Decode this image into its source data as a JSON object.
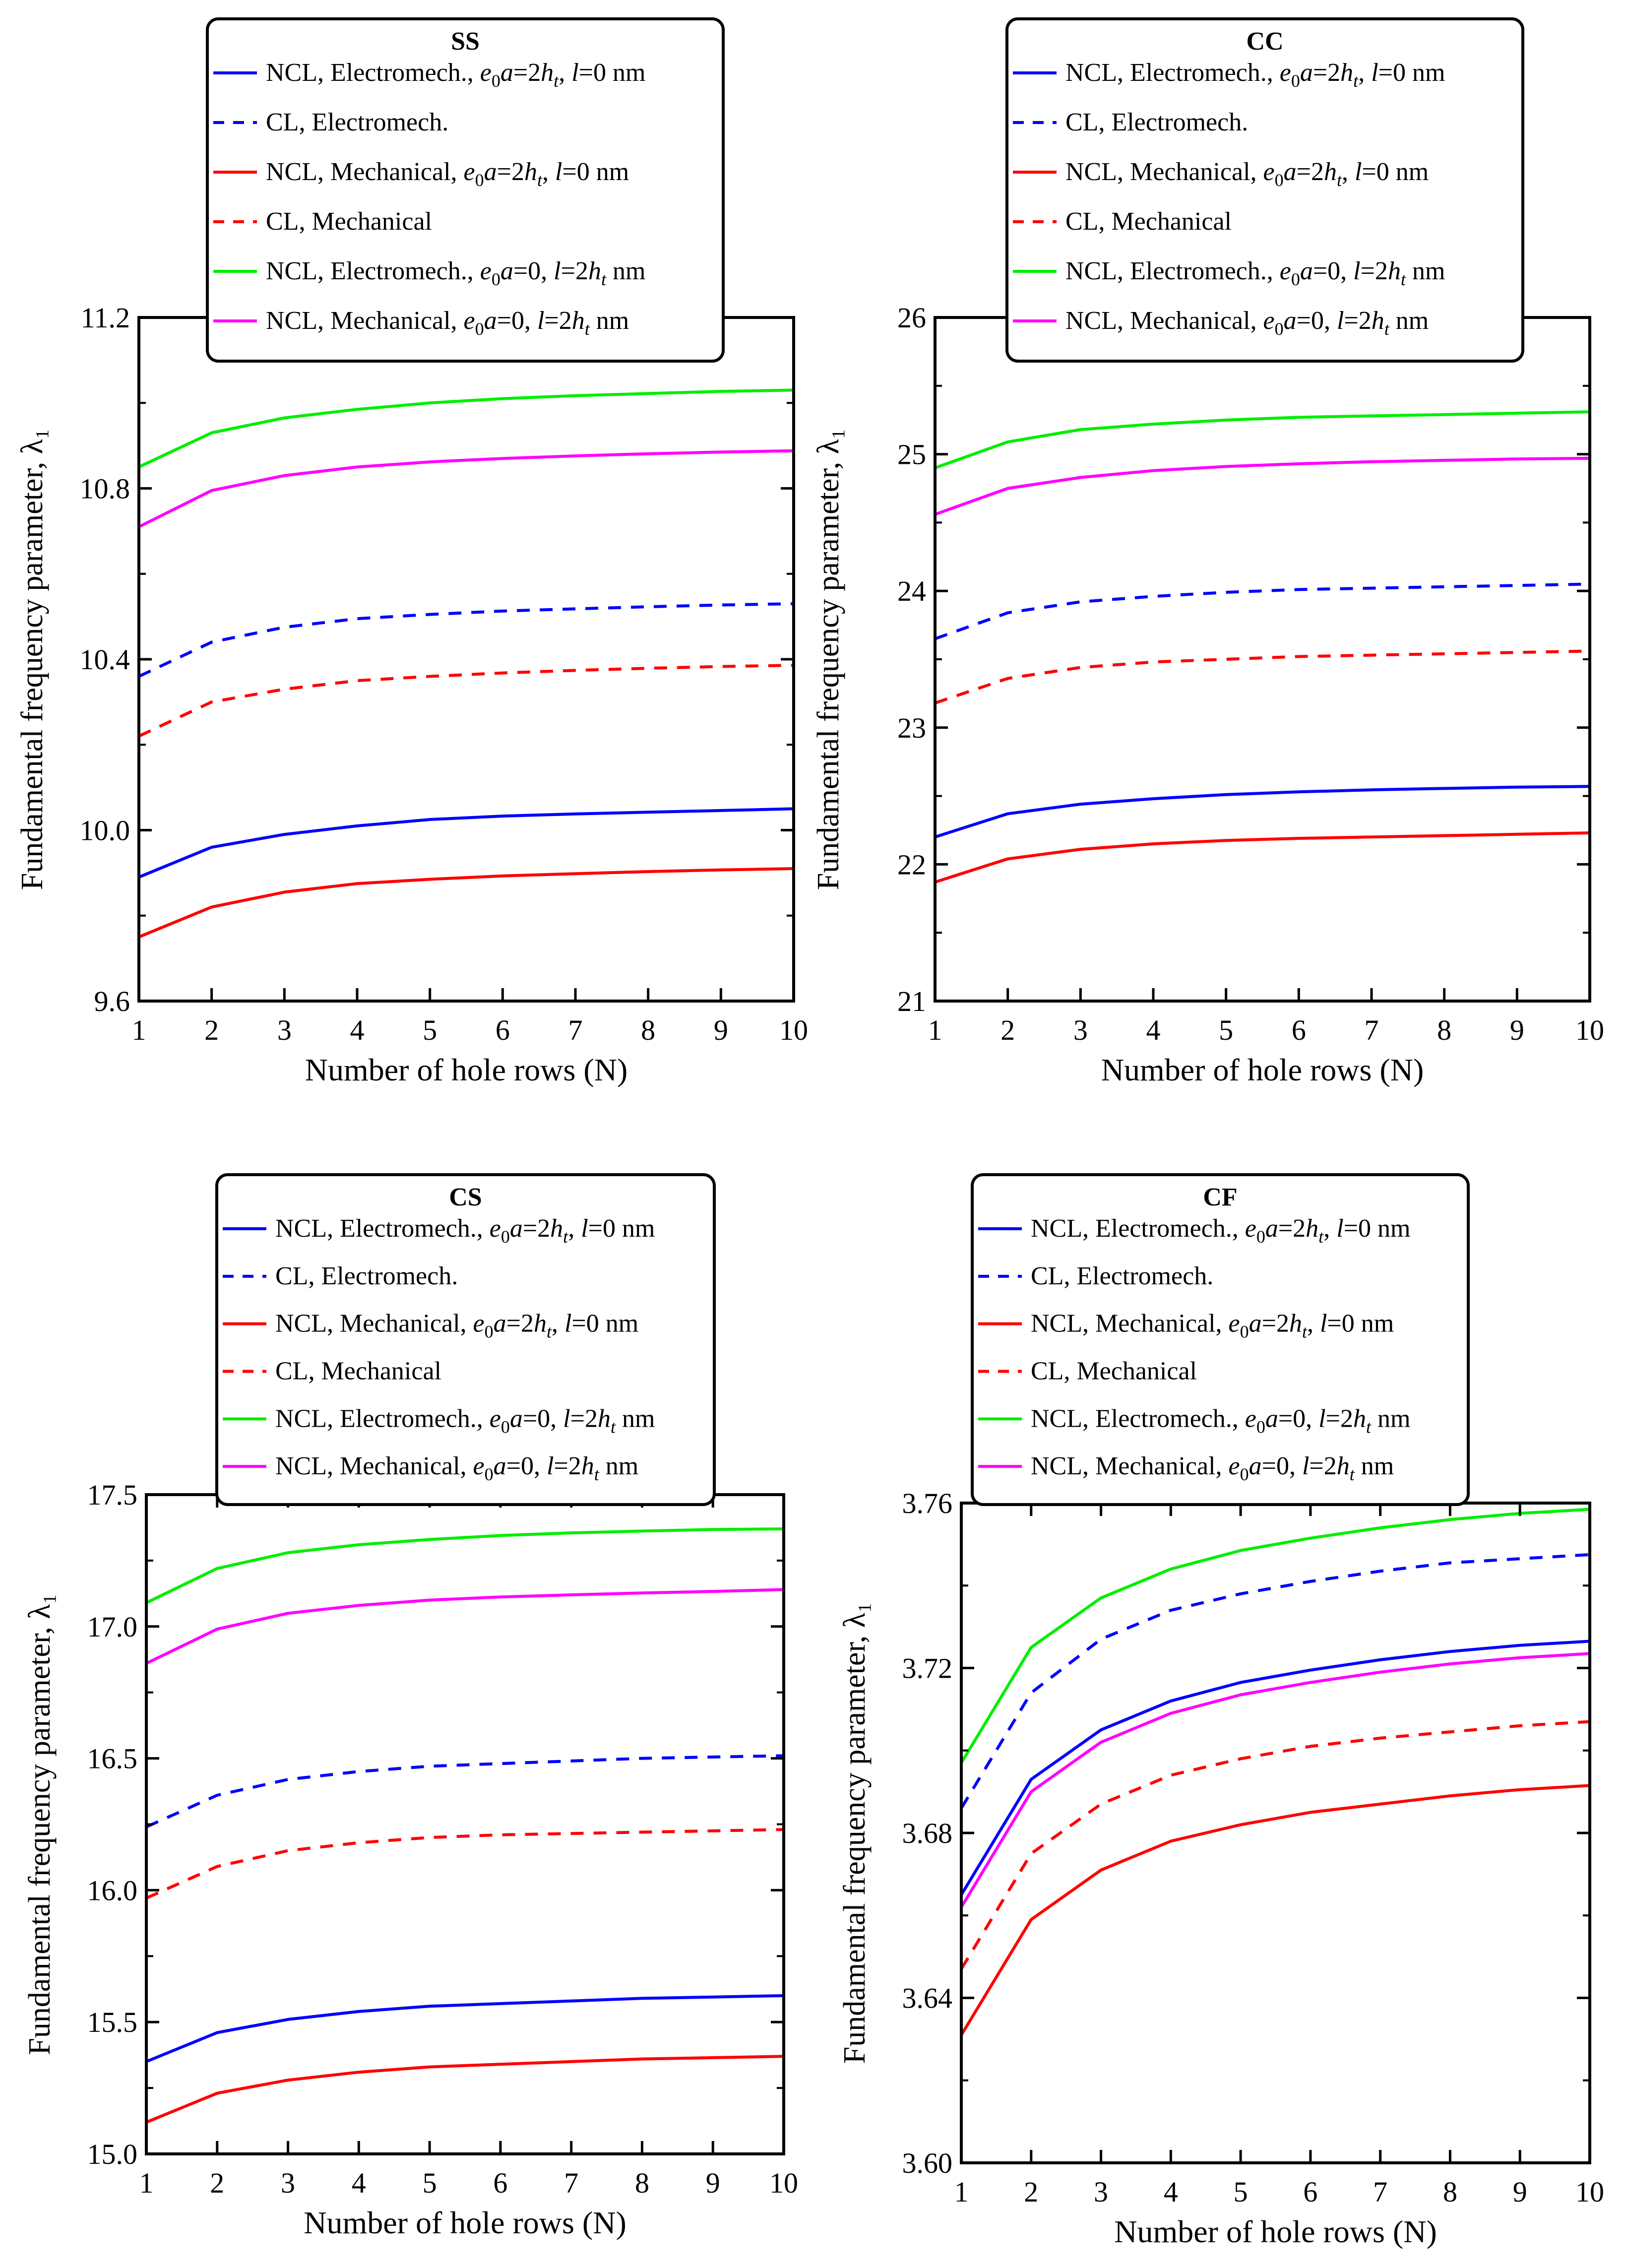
{
  "chart_data": [
    {
      "type": "line",
      "title": "SS",
      "xlabel": "Number of  hole rows  (N)",
      "ylabel": "Fundamental frequency parameter, λ₁",
      "xlim": [
        1,
        10
      ],
      "ylim": [
        9.6,
        11.2
      ],
      "x": [
        1,
        2,
        3,
        4,
        5,
        6,
        7,
        8,
        9,
        10
      ],
      "xticks": [
        "1",
        "2",
        "3",
        "4",
        "5",
        "6",
        "7",
        "8",
        "9",
        "10"
      ],
      "yticks": [
        "9.6",
        "10.0",
        "10.4",
        "10.8",
        "11.2"
      ],
      "ytick_values": [
        9.6,
        10.0,
        10.4,
        10.8,
        11.2
      ],
      "legend_placement": "top",
      "series": [
        {
          "name": "NCL, Electromech., e0a=2ht, l=0 nm",
          "color": "#0000ff",
          "dash": "solid",
          "values": [
            9.89,
            9.96,
            9.99,
            10.01,
            10.025,
            10.033,
            10.038,
            10.042,
            10.046,
            10.05
          ]
        },
        {
          "name": "CL, Electromech.",
          "color": "#0000ff",
          "dash": "dashed",
          "values": [
            10.36,
            10.44,
            10.475,
            10.495,
            10.505,
            10.513,
            10.518,
            10.523,
            10.527,
            10.53
          ]
        },
        {
          "name": "NCL, Mechanical, e0a=2ht, l=0 nm",
          "color": "#ff0000",
          "dash": "solid",
          "values": [
            9.75,
            9.82,
            9.855,
            9.875,
            9.885,
            9.893,
            9.898,
            9.903,
            9.907,
            9.91
          ]
        },
        {
          "name": "CL, Mechanical",
          "color": "#ff0000",
          "dash": "dashed",
          "values": [
            10.22,
            10.3,
            10.33,
            10.35,
            10.36,
            10.368,
            10.374,
            10.379,
            10.383,
            10.386
          ]
        },
        {
          "name": "NCL, Electromech., e0a=0, l=2ht nm",
          "color": "#00ee00",
          "dash": "solid",
          "values": [
            10.85,
            10.93,
            10.965,
            10.985,
            11.0,
            11.01,
            11.017,
            11.022,
            11.027,
            11.03
          ]
        },
        {
          "name": "NCL, Mechanical, e0a=0, l=2ht nm",
          "color": "#ff00ff",
          "dash": "solid",
          "values": [
            10.71,
            10.795,
            10.83,
            10.85,
            10.862,
            10.87,
            10.876,
            10.881,
            10.885,
            10.888
          ]
        }
      ]
    },
    {
      "type": "line",
      "title": "CC",
      "xlabel": "Number of  hole rows  (N)",
      "ylabel": "Fundamental frequency parameter, λ₁",
      "xlim": [
        1,
        10
      ],
      "ylim": [
        21,
        26
      ],
      "x": [
        1,
        2,
        3,
        4,
        5,
        6,
        7,
        8,
        9,
        10
      ],
      "xticks": [
        "1",
        "2",
        "3",
        "4",
        "5",
        "6",
        "7",
        "8",
        "9",
        "10"
      ],
      "yticks": [
        "21",
        "22",
        "23",
        "24",
        "25",
        "26"
      ],
      "ytick_values": [
        21,
        22,
        23,
        24,
        25,
        26
      ],
      "legend_placement": "top",
      "series": [
        {
          "name": "NCL, Electromech., e0a=2ht, l=0 nm",
          "color": "#0000ff",
          "dash": "solid",
          "values": [
            22.2,
            22.37,
            22.44,
            22.48,
            22.51,
            22.53,
            22.545,
            22.555,
            22.565,
            22.57
          ]
        },
        {
          "name": "CL, Electromech.",
          "color": "#0000ff",
          "dash": "dashed",
          "values": [
            23.65,
            23.84,
            23.92,
            23.96,
            23.99,
            24.01,
            24.02,
            24.03,
            24.04,
            24.05
          ]
        },
        {
          "name": "NCL, Mechanical, e0a=2ht, l=0 nm",
          "color": "#ff0000",
          "dash": "solid",
          "values": [
            21.87,
            22.04,
            22.11,
            22.15,
            22.175,
            22.19,
            22.2,
            22.21,
            22.22,
            22.23
          ]
        },
        {
          "name": "CL, Mechanical",
          "color": "#ff0000",
          "dash": "dashed",
          "values": [
            23.18,
            23.36,
            23.44,
            23.48,
            23.5,
            23.52,
            23.53,
            23.54,
            23.55,
            23.56
          ]
        },
        {
          "name": "NCL, Electromech., e0a=0, l=2ht nm",
          "color": "#00ee00",
          "dash": "solid",
          "values": [
            24.9,
            25.09,
            25.18,
            25.22,
            25.25,
            25.27,
            25.28,
            25.29,
            25.3,
            25.31
          ]
        },
        {
          "name": "NCL, Mechanical, e0a=0, l=2ht nm",
          "color": "#ff00ff",
          "dash": "solid",
          "values": [
            24.56,
            24.75,
            24.83,
            24.88,
            24.91,
            24.93,
            24.945,
            24.955,
            24.965,
            24.97
          ]
        }
      ]
    },
    {
      "type": "line",
      "title": "CS",
      "xlabel": "Number of  hole rows  (N)",
      "ylabel": "Fundamental frequency parameter, λ₁",
      "xlim": [
        1,
        10
      ],
      "ylim": [
        15.0,
        17.5
      ],
      "x": [
        1,
        2,
        3,
        4,
        5,
        6,
        7,
        8,
        9,
        10
      ],
      "xticks": [
        "1",
        "2",
        "3",
        "4",
        "5",
        "6",
        "7",
        "8",
        "9",
        "10"
      ],
      "yticks": [
        "15.0",
        "15.5",
        "16.0",
        "16.5",
        "17.0",
        "17.5"
      ],
      "ytick_values": [
        15.0,
        15.5,
        16.0,
        16.5,
        17.0,
        17.5
      ],
      "legend_placement": "top",
      "series": [
        {
          "name": "NCL, Electromech., e0a=2ht, l=0 nm",
          "color": "#0000ff",
          "dash": "solid",
          "values": [
            15.35,
            15.46,
            15.51,
            15.54,
            15.56,
            15.57,
            15.58,
            15.59,
            15.595,
            15.6
          ]
        },
        {
          "name": "CL, Electromech.",
          "color": "#0000ff",
          "dash": "dashed",
          "values": [
            16.24,
            16.36,
            16.42,
            16.45,
            16.47,
            16.48,
            16.49,
            16.5,
            16.505,
            16.51
          ]
        },
        {
          "name": "NCL, Mechanical, e0a=2ht, l=0 nm",
          "color": "#ff0000",
          "dash": "solid",
          "values": [
            15.12,
            15.23,
            15.28,
            15.31,
            15.33,
            15.34,
            15.35,
            15.36,
            15.365,
            15.37
          ]
        },
        {
          "name": "CL, Mechanical",
          "color": "#ff0000",
          "dash": "dashed",
          "values": [
            15.97,
            16.09,
            16.15,
            16.18,
            16.2,
            16.21,
            16.215,
            16.22,
            16.225,
            16.23
          ]
        },
        {
          "name": "NCL, Electromech., e0a=0, l=2ht nm",
          "color": "#00ee00",
          "dash": "solid",
          "values": [
            17.09,
            17.22,
            17.28,
            17.31,
            17.33,
            17.345,
            17.355,
            17.362,
            17.368,
            17.37
          ]
        },
        {
          "name": "NCL, Mechanical, e0a=0, l=2ht nm",
          "color": "#ff00ff",
          "dash": "solid",
          "values": [
            16.86,
            16.99,
            17.05,
            17.08,
            17.1,
            17.112,
            17.12,
            17.127,
            17.133,
            17.14
          ]
        }
      ]
    },
    {
      "type": "line",
      "title": "CF",
      "xlabel": "Number of  hole rows  (N)",
      "ylabel": "Fundamental frequency parameter, λ₁",
      "xlim": [
        1,
        10
      ],
      "ylim": [
        3.6,
        3.76
      ],
      "x": [
        1,
        2,
        3,
        4,
        5,
        6,
        7,
        8,
        9,
        10
      ],
      "xticks": [
        "1",
        "2",
        "3",
        "4",
        "5",
        "6",
        "7",
        "8",
        "9",
        "10"
      ],
      "yticks": [
        "3.60",
        "3.64",
        "3.68",
        "3.72",
        "3.76"
      ],
      "ytick_values": [
        3.6,
        3.64,
        3.68,
        3.72,
        3.76
      ],
      "legend_placement": "top",
      "series": [
        {
          "name": "NCL, Electromech., e0a=2ht, l=0 nm",
          "color": "#0000ff",
          "dash": "solid",
          "values": [
            3.665,
            3.693,
            3.705,
            3.712,
            3.7165,
            3.7195,
            3.722,
            3.724,
            3.7255,
            3.7265
          ]
        },
        {
          "name": "CL, Electromech.",
          "color": "#0000ff",
          "dash": "dashed",
          "values": [
            3.686,
            3.714,
            3.727,
            3.734,
            3.738,
            3.741,
            3.7435,
            3.7455,
            3.7465,
            3.7475
          ]
        },
        {
          "name": "NCL, Mechanical, e0a=2ht, l=0 nm",
          "color": "#ff0000",
          "dash": "solid",
          "values": [
            3.631,
            3.659,
            3.671,
            3.678,
            3.682,
            3.685,
            3.687,
            3.689,
            3.6905,
            3.6915
          ]
        },
        {
          "name": "CL, Mechanical",
          "color": "#ff0000",
          "dash": "dashed",
          "values": [
            3.647,
            3.675,
            3.687,
            3.694,
            3.698,
            3.701,
            3.703,
            3.7045,
            3.706,
            3.707
          ]
        },
        {
          "name": "NCL, Electromech., e0a=0, l=2ht nm",
          "color": "#00ee00",
          "dash": "solid",
          "values": [
            3.697,
            3.725,
            3.737,
            3.744,
            3.7485,
            3.7515,
            3.754,
            3.756,
            3.7575,
            3.7585
          ]
        },
        {
          "name": "NCL, Mechanical, e0a=0, l=2ht nm",
          "color": "#ff00ff",
          "dash": "solid",
          "values": [
            3.662,
            3.69,
            3.702,
            3.709,
            3.7135,
            3.7165,
            3.719,
            3.721,
            3.7225,
            3.7235
          ]
        }
      ]
    }
  ]
}
